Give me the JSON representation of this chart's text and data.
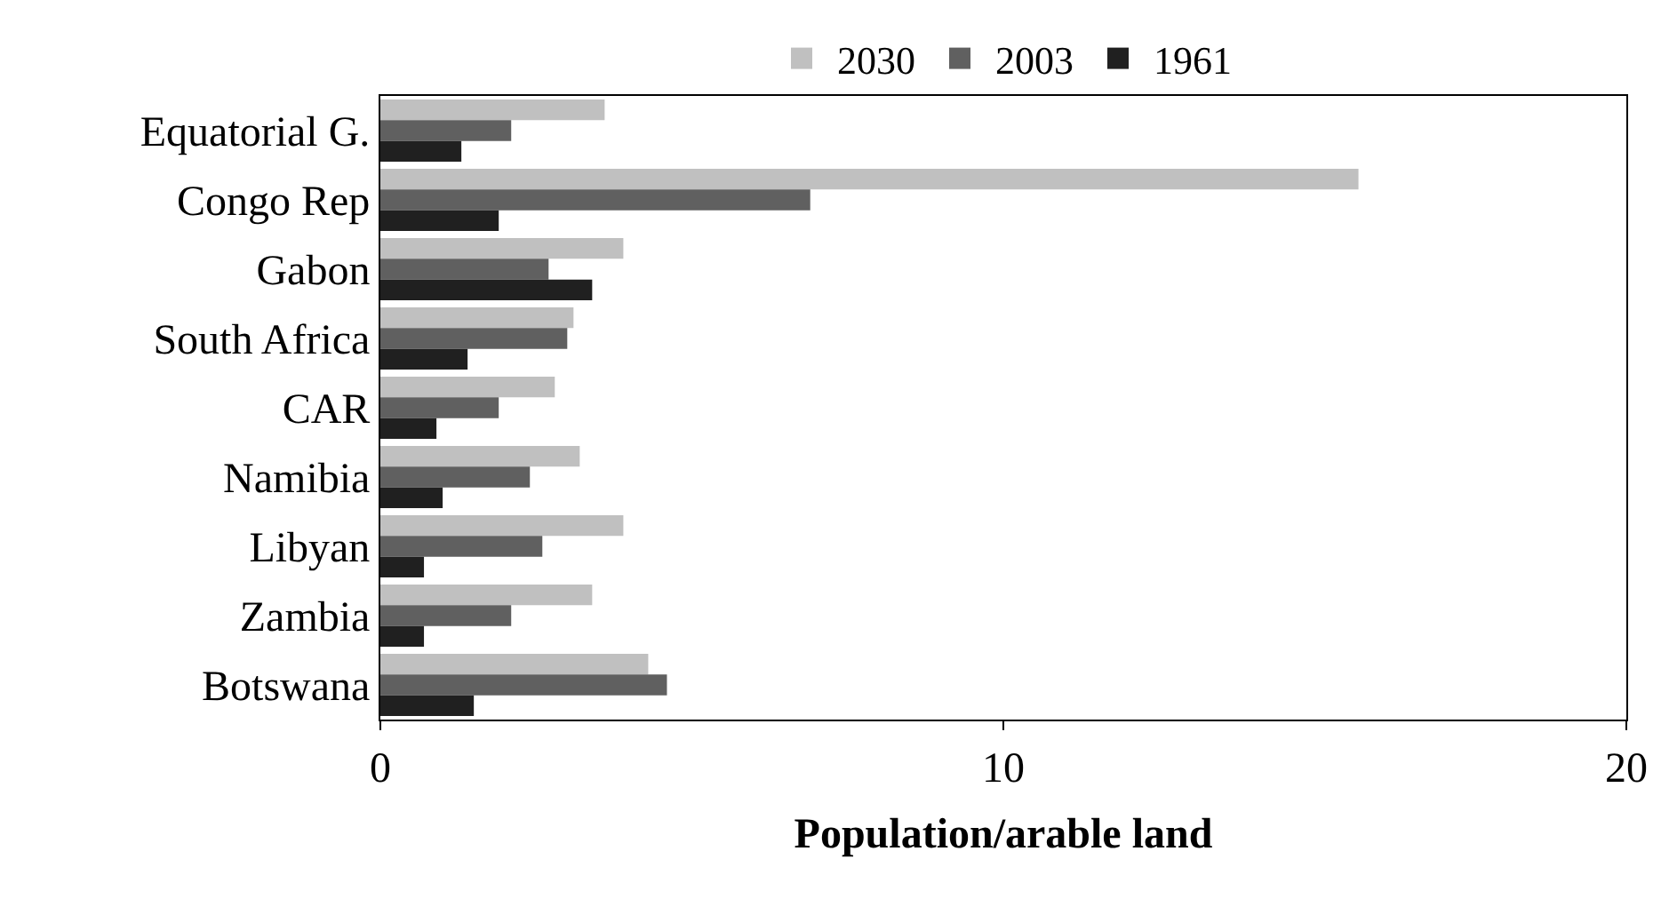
{
  "chart_data": {
    "type": "bar",
    "orientation": "horizontal",
    "xlabel": "Population/arable land",
    "categories": [
      "Equatorial G.",
      "Congo Rep",
      "Gabon",
      "South Africa",
      "CAR",
      "Namibia",
      "Libyan",
      "Zambia",
      "Botswana"
    ],
    "series": [
      {
        "name": "2030",
        "color": "#c0c0c0",
        "values": [
          3.6,
          15.7,
          3.9,
          3.1,
          2.8,
          3.2,
          3.9,
          3.4,
          4.3
        ]
      },
      {
        "name": "2003",
        "color": "#606060",
        "values": [
          2.1,
          6.9,
          2.7,
          3.0,
          1.9,
          2.4,
          2.6,
          2.1,
          4.6
        ]
      },
      {
        "name": "1961",
        "color": "#202020",
        "values": [
          1.3,
          1.9,
          3.4,
          1.4,
          0.9,
          1.0,
          0.7,
          0.7,
          1.5
        ]
      }
    ],
    "xlim": [
      0,
      20
    ],
    "xticks": [
      0,
      10,
      20
    ],
    "legend": "top"
  }
}
